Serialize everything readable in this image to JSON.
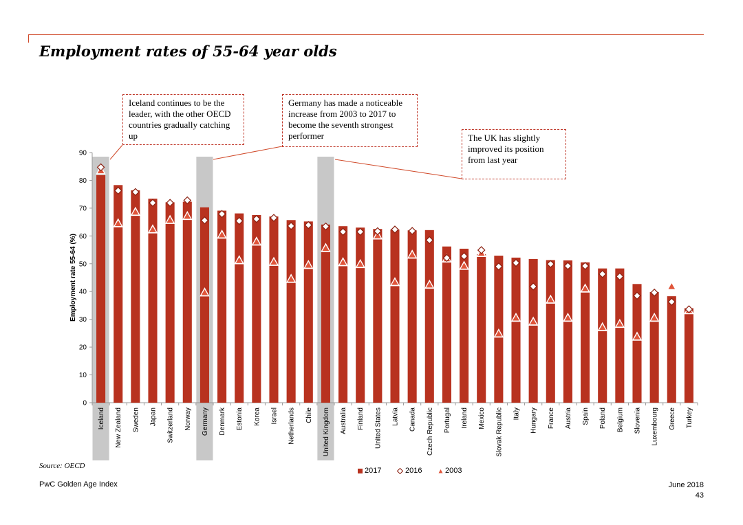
{
  "title": "Employment rates of 55-64 year olds",
  "source": "Source: OECD",
  "footer": {
    "left": "PwC Golden Age Index",
    "date": "June 2018",
    "page": "43"
  },
  "callouts": [
    {
      "text": "Iceland continues to be the leader, with the other OECD countries gradually catching up"
    },
    {
      "text": "Germany has made a noticeable increase from 2003 to 2017 to become the seventh strongest performer"
    },
    {
      "text": "The UK has slightly improved its position from last year"
    }
  ],
  "colors": {
    "bar": "#b8321f",
    "highlight": "#c8c8c8",
    "accent": "#d04a2a",
    "marker_edge": "#8b2010"
  },
  "chart_data": {
    "type": "bar",
    "ylabel": "Employment rate 55-64 (%)",
    "xlabel": "",
    "ylim": [
      0,
      90
    ],
    "yticks": [
      0,
      10,
      20,
      30,
      40,
      50,
      60,
      70,
      80,
      90
    ],
    "categories": [
      "Iceland",
      "New Zealand",
      "Sweden",
      "Japan",
      "Switzerland",
      "Norway",
      "Germany",
      "Denmark",
      "Estonia",
      "Korea",
      "Israel",
      "Netherlands",
      "Chile",
      "United Kingdom",
      "Australia",
      "Finland",
      "United States",
      "Latvia",
      "Canada",
      "Czech Republic",
      "Portugal",
      "Ireland",
      "Mexico",
      "Slovak Republic",
      "Italy",
      "Hungary",
      "France",
      "Austria",
      "Spain",
      "Poland",
      "Belgium",
      "Slovenia",
      "Luxembourg",
      "Greece",
      "Turkey"
    ],
    "highlighted": [
      "Iceland",
      "Germany",
      "United Kingdom"
    ],
    "series": [
      {
        "name": "2017",
        "marker": "bar",
        "values": [
          81.9,
          78.3,
          76.4,
          73.4,
          72.1,
          72.3,
          70.3,
          69.1,
          68.1,
          67.5,
          67.0,
          65.7,
          65.2,
          64.1,
          63.5,
          63.0,
          62.5,
          62.3,
          62.0,
          62.1,
          56.2,
          55.4,
          53.4,
          52.9,
          52.2,
          51.7,
          51.3,
          51.2,
          50.5,
          48.3,
          48.3,
          42.7,
          39.8,
          38.3,
          34.0
        ]
      },
      {
        "name": "2016",
        "marker": "diamond",
        "values": [
          84.7,
          76.3,
          75.8,
          71.9,
          71.9,
          72.8,
          65.6,
          67.9,
          65.4,
          66.1,
          66.5,
          63.6,
          63.9,
          63.4,
          61.5,
          61.5,
          61.7,
          62.3,
          61.8,
          58.5,
          52.1,
          52.7,
          54.9,
          49.0,
          50.3,
          41.8,
          49.9,
          49.2,
          49.2,
          46.3,
          45.4,
          38.5,
          39.6,
          36.3,
          33.6
        ]
      },
      {
        "name": "2003",
        "marker": "triangle",
        "values": [
          83.3,
          64.3,
          68.4,
          62.1,
          65.5,
          66.9,
          39.4,
          60.2,
          51.0,
          57.7,
          50.4,
          44.3,
          49.3,
          55.4,
          50.3,
          49.6,
          59.9,
          43.1,
          53.0,
          42.2,
          51.6,
          49.0,
          53.6,
          24.6,
          30.3,
          28.9,
          36.8,
          30.3,
          40.8,
          26.9,
          28.1,
          23.5,
          30.3,
          41.6,
          33.0
        ]
      }
    ],
    "legend": [
      "2017",
      "2016",
      "2003"
    ],
    "legend_position": "bottom",
    "grid": false
  }
}
